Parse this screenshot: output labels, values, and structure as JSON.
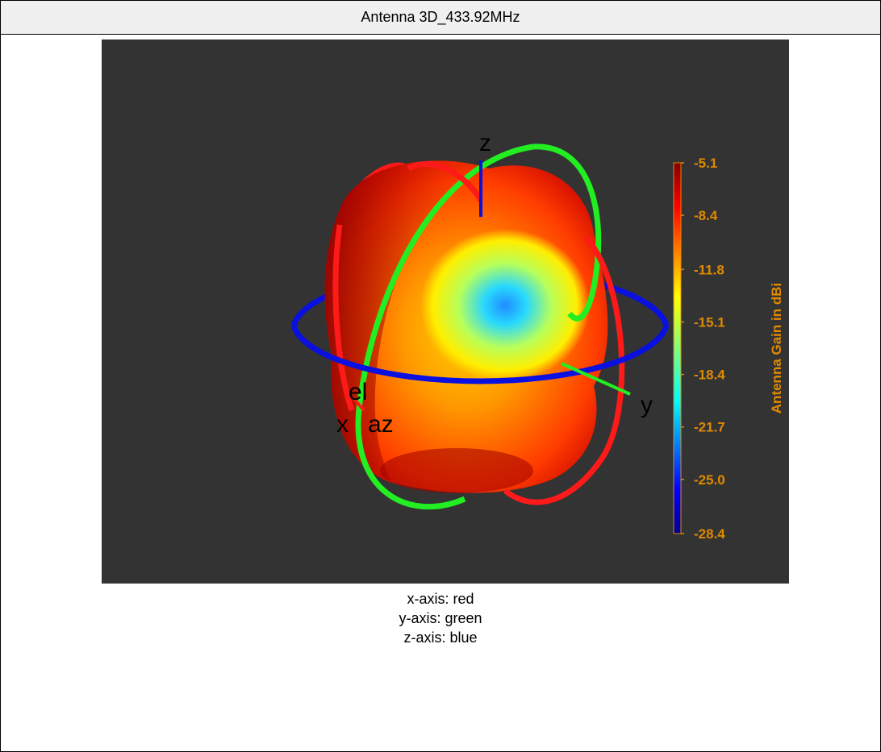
{
  "window": {
    "title": "Antenna 3D_433.92MHz"
  },
  "chart_data": {
    "type": "heatmap",
    "colorbar": {
      "label": "Antenna Gain in dBi",
      "ticks": [
        "-5.1",
        "-8.4",
        "-11.8",
        "-15.1",
        "-18.4",
        "-21.7",
        "-25.0",
        "-28.4"
      ],
      "min": -28.4,
      "max": -5.1,
      "colormap": "jet"
    },
    "axis_labels": {
      "x": "x",
      "y": "y",
      "z": "z",
      "az": "az",
      "el": "el"
    },
    "axis_colors": {
      "x": "#ff1a1a",
      "y": "#22ee22",
      "z": "#0a10e0"
    },
    "background": "#333333",
    "label_color": "#e08a00"
  },
  "caption": {
    "lines": [
      "x-axis: red",
      "y-axis: green",
      "z-axis: blue"
    ]
  }
}
